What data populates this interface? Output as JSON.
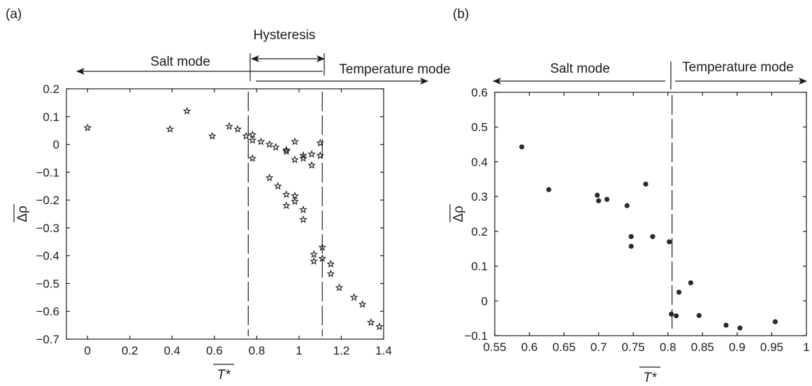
{
  "chart_data": [
    {
      "panel": "(a)",
      "type": "scatter",
      "marker": "star",
      "xlabel": "T*",
      "ylabel": "Δρ",
      "xlim": [
        -0.1,
        1.4
      ],
      "ylim": [
        -0.7,
        0.2
      ],
      "xticks": [
        0,
        0.2,
        0.4,
        0.6,
        0.8,
        1,
        1.2,
        1.4
      ],
      "xtick_labels": [
        "0",
        "0.2",
        "0.4",
        "0.6",
        "0.8",
        "1",
        "1.2",
        "1.4"
      ],
      "yticks": [
        0.2,
        0.1,
        0,
        -0.1,
        -0.2,
        -0.3,
        -0.4,
        -0.5,
        -0.6,
        -0.7
      ],
      "ytick_labels": [
        "0.2",
        "0.1",
        "0",
        "−0.1",
        "−0.2",
        "−0.3",
        "−0.4",
        "−0.5",
        "−0.6",
        "−0.7"
      ],
      "annotations": {
        "salt_mode": "Salt mode",
        "hysteresis": "Hysteresis",
        "temperature_mode": "Temperature mode"
      },
      "thresholds": [
        0.76,
        1.11
      ],
      "grid": false,
      "points": [
        [
          0.0,
          0.06
        ],
        [
          0.39,
          0.055
        ],
        [
          0.47,
          0.12
        ],
        [
          0.59,
          0.03
        ],
        [
          0.67,
          0.065
        ],
        [
          0.71,
          0.055
        ],
        [
          0.75,
          0.03
        ],
        [
          0.78,
          0.035
        ],
        [
          0.78,
          0.015
        ],
        [
          0.82,
          0.01
        ],
        [
          0.86,
          0.0
        ],
        [
          0.89,
          -0.01
        ],
        [
          0.94,
          -0.02
        ],
        [
          0.98,
          0.01
        ],
        [
          0.94,
          -0.025
        ],
        [
          0.98,
          -0.055
        ],
        [
          1.02,
          -0.04
        ],
        [
          1.02,
          -0.05
        ],
        [
          1.06,
          -0.035
        ],
        [
          1.06,
          -0.075
        ],
        [
          1.1,
          -0.04
        ],
        [
          1.1,
          0.005
        ],
        [
          0.78,
          -0.05
        ],
        [
          0.86,
          -0.12
        ],
        [
          0.9,
          -0.15
        ],
        [
          0.94,
          -0.18
        ],
        [
          0.98,
          -0.185
        ],
        [
          0.94,
          -0.22
        ],
        [
          0.98,
          -0.205
        ],
        [
          1.02,
          -0.235
        ],
        [
          1.02,
          -0.27
        ],
        [
          1.07,
          -0.395
        ],
        [
          1.07,
          -0.42
        ],
        [
          1.11,
          -0.37
        ],
        [
          1.11,
          -0.41
        ],
        [
          1.15,
          -0.43
        ],
        [
          1.15,
          -0.465
        ],
        [
          1.19,
          -0.515
        ],
        [
          1.26,
          -0.55
        ],
        [
          1.3,
          -0.575
        ],
        [
          1.34,
          -0.64
        ],
        [
          1.38,
          -0.655
        ]
      ]
    },
    {
      "panel": "(b)",
      "type": "scatter",
      "marker": "dot",
      "xlabel": "T*",
      "ylabel": "Δρ",
      "xlim": [
        0.55,
        1.0
      ],
      "ylim": [
        -0.1,
        0.6
      ],
      "xticks": [
        0.55,
        0.6,
        0.65,
        0.7,
        0.75,
        0.8,
        0.85,
        0.9,
        0.95,
        1.0
      ],
      "xtick_labels": [
        "0.55",
        "0.6",
        "0.65",
        "0.7",
        "0.75",
        "0.8",
        "0.85",
        "0.9",
        "0.95",
        "1"
      ],
      "yticks": [
        0.6,
        0.5,
        0.4,
        0.3,
        0.2,
        0.1,
        0,
        -0.1
      ],
      "ytick_labels": [
        "0.6",
        "0.5",
        "0.4",
        "0.3",
        "0.2",
        "0.1",
        "0",
        "−0.1"
      ],
      "annotations": {
        "salt_mode": "Salt mode",
        "temperature_mode": "Temperature mode"
      },
      "thresholds": [
        0.806
      ],
      "grid": false,
      "points": [
        [
          0.589,
          0.443
        ],
        [
          0.628,
          0.32
        ],
        [
          0.698,
          0.304
        ],
        [
          0.7,
          0.288
        ],
        [
          0.712,
          0.292
        ],
        [
          0.741,
          0.274
        ],
        [
          0.747,
          0.185
        ],
        [
          0.747,
          0.157
        ],
        [
          0.768,
          0.336
        ],
        [
          0.778,
          0.185
        ],
        [
          0.802,
          0.17
        ],
        [
          0.805,
          -0.038
        ],
        [
          0.812,
          -0.043
        ],
        [
          0.816,
          0.025
        ],
        [
          0.833,
          0.052
        ],
        [
          0.845,
          -0.042
        ],
        [
          0.884,
          -0.07
        ],
        [
          0.904,
          -0.078
        ],
        [
          0.955,
          -0.06
        ]
      ]
    }
  ]
}
